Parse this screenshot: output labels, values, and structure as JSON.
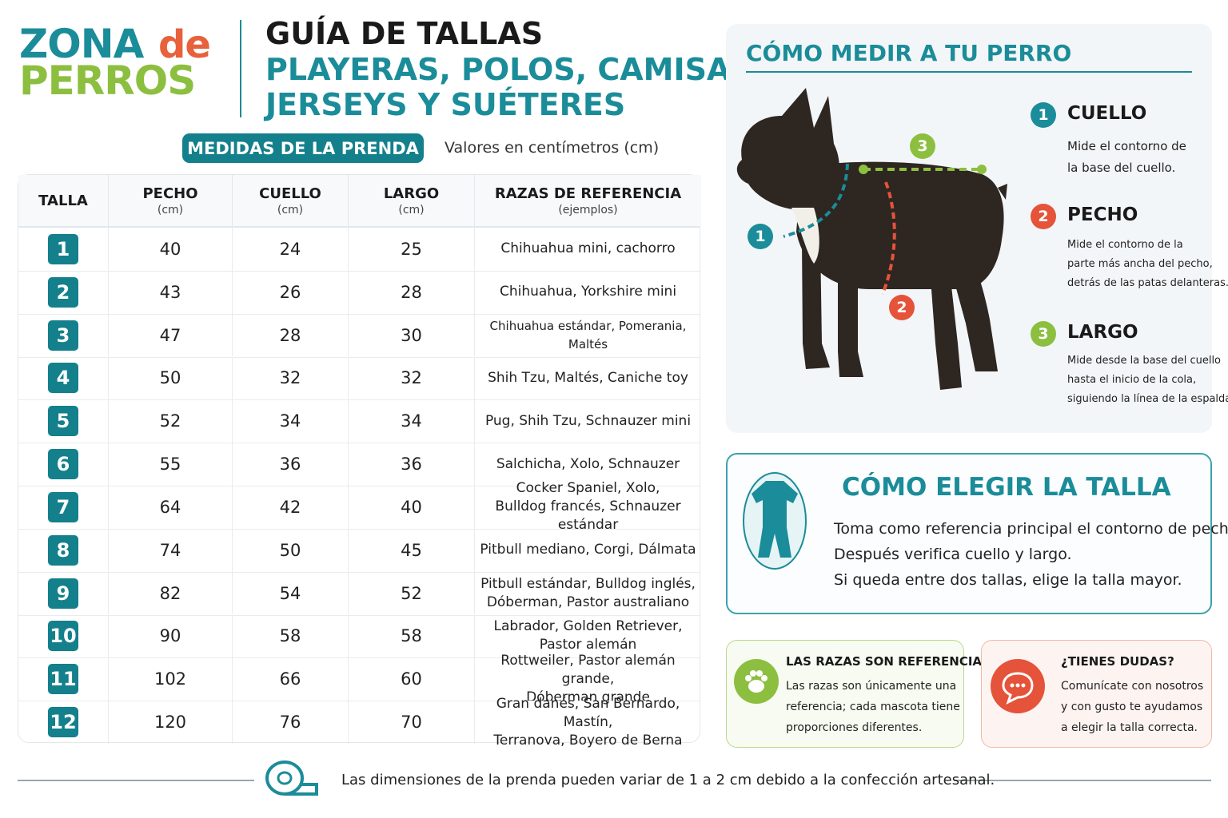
{
  "logo": {
    "word1": "ZONA",
    "word2": "de",
    "word3": "PERROS"
  },
  "header": {
    "title": "GUÍA DE TALLAS",
    "subtitle_lines": [
      "PLAYERAS, POLOS, CAMISAS,",
      "JERSEYS Y SUÉTERES"
    ]
  },
  "table_caption": {
    "badge": "MEDIDAS DE LA PRENDA",
    "note": "Valores en centímetros (cm)"
  },
  "table": {
    "columns": [
      {
        "label": "TALLA"
      },
      {
        "label": "PECHO",
        "unit": "(cm)"
      },
      {
        "label": "CUELLO",
        "unit": "(cm)"
      },
      {
        "label": "LARGO",
        "unit": "(cm)"
      },
      {
        "label": "RAZAS DE REFERENCIA",
        "unit": "(ejemplos)"
      }
    ],
    "rows": [
      [
        1,
        40,
        24,
        25,
        [
          "Chihuahua mini, cachorro"
        ]
      ],
      [
        2,
        43,
        26,
        28,
        [
          "Chihuahua, Yorkshire mini"
        ]
      ],
      [
        3,
        47,
        28,
        30,
        [
          "Chihuahua estándar, Pomerania, Maltés"
        ]
      ],
      [
        4,
        50,
        32,
        32,
        [
          "Shih Tzu, Maltés, Caniche toy"
        ]
      ],
      [
        5,
        52,
        34,
        34,
        [
          "Pug, Shih Tzu, Schnauzer mini"
        ]
      ],
      [
        6,
        55,
        36,
        36,
        [
          "Salchicha, Xolo, Schnauzer"
        ]
      ],
      [
        7,
        64,
        42,
        40,
        [
          "Cocker Spaniel, Xolo,",
          "Bulldog francés, Schnauzer estándar"
        ]
      ],
      [
        8,
        74,
        50,
        45,
        [
          "Pitbull mediano, Corgi, Dálmata"
        ]
      ],
      [
        9,
        82,
        54,
        52,
        [
          "Pitbull estándar, Bulldog inglés,",
          "Dóberman, Pastor australiano"
        ]
      ],
      [
        10,
        90,
        58,
        58,
        [
          "Labrador, Golden Retriever,",
          "Pastor alemán"
        ]
      ],
      [
        11,
        102,
        66,
        60,
        [
          "Rottweiler, Pastor alemán grande,",
          "Dóberman grande"
        ]
      ],
      [
        12,
        120,
        76,
        70,
        [
          "Gran danés, San Bernardo, Mastín,",
          "Terranova, Boyero de Berna"
        ]
      ]
    ]
  },
  "measure": {
    "title": "CÓMO MEDIR A TU PERRO",
    "items": [
      {
        "number": 1,
        "name": "CUELLO",
        "lines": [
          "Mide el contorno de",
          "la base del cuello."
        ]
      },
      {
        "number": 2,
        "name": "PECHO",
        "lines": [
          "Mide el contorno de la",
          "parte más ancha del pecho,",
          "detrás de las patas delanteras."
        ]
      },
      {
        "number": 3,
        "name": "LARGO",
        "lines": [
          "Mide desde la base del cuello",
          "hasta el inicio de la cola,",
          "siguiendo la línea de la espalda."
        ]
      }
    ]
  },
  "choose": {
    "title": "CÓMO ELEGIR LA TALLA",
    "lines": [
      "Toma como referencia principal el contorno de pecho.",
      "Después verifica cuello y largo.",
      "Si queda entre dos tallas, elige la talla mayor."
    ]
  },
  "breeds_note": {
    "title": "LAS RAZAS SON REFERENCIA",
    "lines": [
      "Las razas son únicamente una",
      "referencia; cada mascota tiene",
      "proporciones diferentes."
    ]
  },
  "questions": {
    "title": "¿TIENES DUDAS?",
    "lines": [
      "Comunícate con nosotros",
      "y con gusto te ayudamos",
      "a elegir la talla correcta."
    ]
  },
  "footer": {
    "text": "Las dimensiones de la prenda pueden variar de 1 a 2 cm debido a la confección artesanal."
  }
}
